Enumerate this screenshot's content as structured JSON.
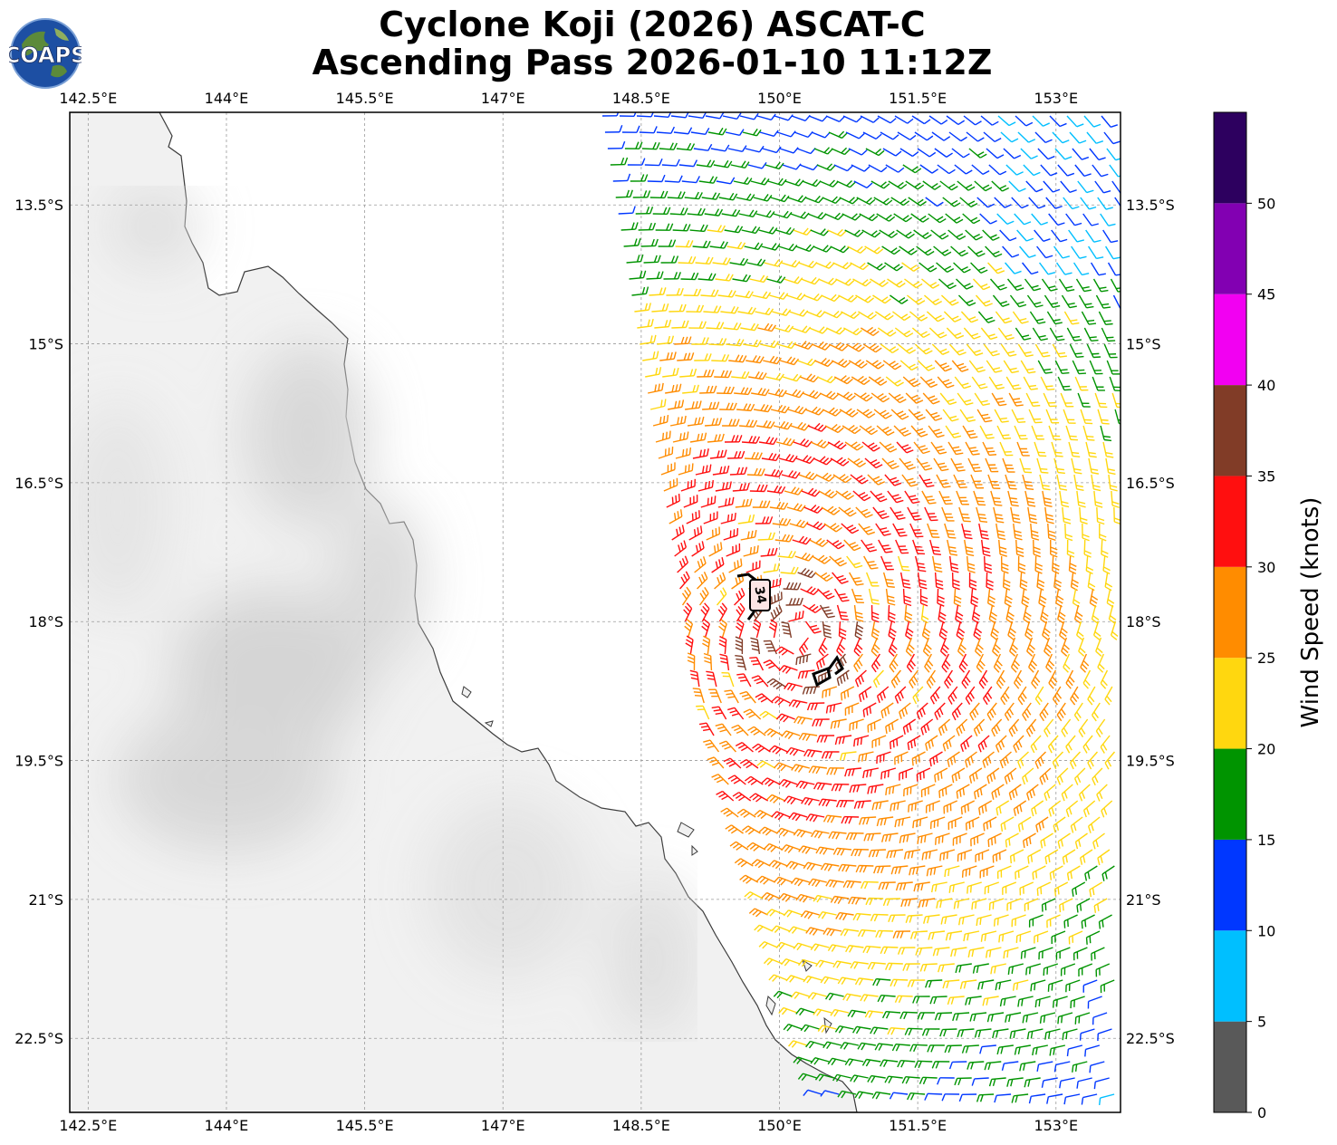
{
  "title": {
    "line1": "Cyclone Koji (2026) ASCAT-C",
    "line2": "Ascending Pass 2026-01-10 11:12Z"
  },
  "logo": {
    "text": "COAPS"
  },
  "map": {
    "lon_range": [
      142.3,
      153.7
    ],
    "lat_range": [
      -23.3,
      -12.5
    ],
    "lon_ticks": [
      "142.5°E",
      "144°E",
      "145.5°E",
      "147°E",
      "148.5°E",
      "150°E",
      "151.5°E",
      "153°E"
    ],
    "lat_ticks": [
      "13.5°S",
      "15°S",
      "16.5°S",
      "18°S",
      "19.5°S",
      "21°S",
      "22.5°S"
    ],
    "grid": true,
    "land": "grayscale topography",
    "coastline": "Queensland, Australia",
    "storm_marker_label": "34"
  },
  "colorbar": {
    "label": "Wind Speed (knots)",
    "ticks": [
      "0",
      "5",
      "10",
      "15",
      "20",
      "25",
      "30",
      "35",
      "40",
      "45",
      "50"
    ],
    "bins": [
      {
        "min": 0,
        "max": 5,
        "color": "#595959"
      },
      {
        "min": 5,
        "max": 10,
        "color": "#00bfff"
      },
      {
        "min": 10,
        "max": 15,
        "color": "#0037ff"
      },
      {
        "min": 15,
        "max": 20,
        "color": "#009400"
      },
      {
        "min": 20,
        "max": 25,
        "color": "#ffd70f"
      },
      {
        "min": 25,
        "max": 30,
        "color": "#ff8c00"
      },
      {
        "min": 30,
        "max": 35,
        "color": "#ff0f0f"
      },
      {
        "min": 35,
        "max": 40,
        "color": "#813c27"
      },
      {
        "min": 40,
        "max": 45,
        "color": "#f200f2"
      },
      {
        "min": 45,
        "max": 50,
        "color": "#8200b2"
      },
      {
        "min": 50,
        "max": 55,
        "color": "#2d005f"
      }
    ]
  }
}
